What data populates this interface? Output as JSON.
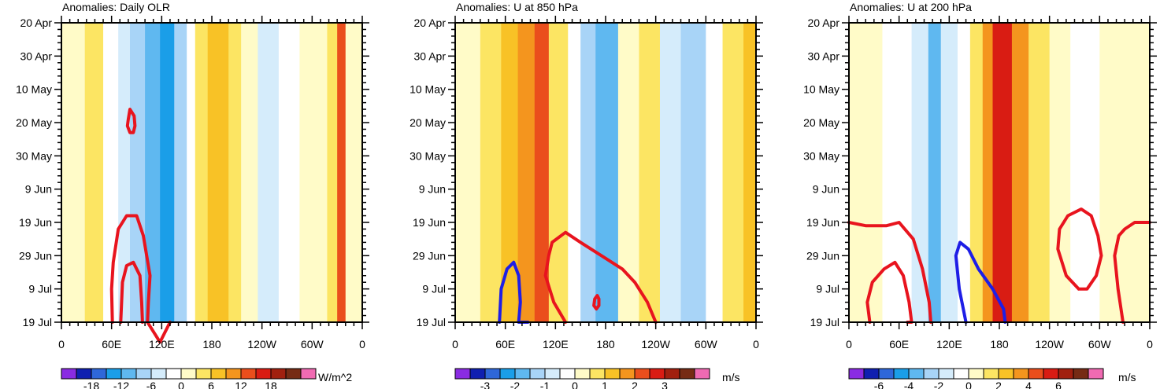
{
  "palette": [
    "#8a2be2",
    "#0f1fb0",
    "#2f67d9",
    "#1a9ee8",
    "#5fb8f0",
    "#a8d4f7",
    "#d5ecfb",
    "#ffffff",
    "#fffbc8",
    "#fce563",
    "#f8c226",
    "#f4951e",
    "#ea4e1c",
    "#d91c13",
    "#a1200f",
    "#762b14",
    "#f06ab2"
  ],
  "chart_data": [
    {
      "type": "heatmap",
      "title": "Anomalies: Daily OLR",
      "units": "W/m^2",
      "x_tick_labels": [
        "0",
        "60E",
        "120E",
        "180",
        "120W",
        "60W",
        "0"
      ],
      "x_range": [
        0,
        360
      ],
      "y_tick_labels": [
        "20 Apr",
        "30 Apr",
        "10 May",
        "20 May",
        "30 May",
        "9 Jun",
        "19 Jun",
        "29 Jun",
        "9 Jul",
        "19 Jul"
      ],
      "colorbar_labels": [
        "-18",
        "-12",
        "-6",
        "0",
        "6",
        "12",
        "18"
      ],
      "levels": [
        -21,
        -18,
        -15,
        -12,
        -9,
        -6,
        -3,
        0,
        3,
        6,
        9,
        12,
        15,
        18,
        21
      ],
      "stripes": [
        {
          "lon_start": 0,
          "lon_end": 28,
          "value": 1
        },
        {
          "lon_start": 28,
          "lon_end": 50,
          "value": 3
        },
        {
          "lon_start": 50,
          "lon_end": 68,
          "value": -2
        },
        {
          "lon_start": 68,
          "lon_end": 82,
          "value": -4
        },
        {
          "lon_start": 82,
          "lon_end": 100,
          "value": -7
        },
        {
          "lon_start": 100,
          "lon_end": 118,
          "value": -10
        },
        {
          "lon_start": 118,
          "lon_end": 135,
          "value": -14
        },
        {
          "lon_start": 135,
          "lon_end": 150,
          "value": -8
        },
        {
          "lon_start": 150,
          "lon_end": 160,
          "value": -2
        },
        {
          "lon_start": 160,
          "lon_end": 175,
          "value": 3
        },
        {
          "lon_start": 175,
          "lon_end": 200,
          "value": 8
        },
        {
          "lon_start": 200,
          "lon_end": 215,
          "value": 5
        },
        {
          "lon_start": 215,
          "lon_end": 235,
          "value": 1
        },
        {
          "lon_start": 235,
          "lon_end": 260,
          "value": -5
        },
        {
          "lon_start": 260,
          "lon_end": 285,
          "value": -2
        },
        {
          "lon_start": 285,
          "lon_end": 318,
          "value": 1
        },
        {
          "lon_start": 318,
          "lon_end": 330,
          "value": 4
        },
        {
          "lon_start": 330,
          "lon_end": 340,
          "value": 12
        },
        {
          "lon_start": 340,
          "lon_end": 360,
          "value": 1
        }
      ],
      "contours": [
        {
          "color": "red",
          "lon": [
            80,
            79,
            82,
            86,
            88,
            87,
            82,
            80
          ],
          "day": [
            29,
            31,
            33,
            33,
            31,
            28,
            26,
            29
          ]
        },
        {
          "color": "red",
          "lon": [
            61,
            60,
            62,
            68,
            78,
            90,
            98,
            106,
            104,
            103,
            118,
            130
          ],
          "day": [
            90,
            80,
            72,
            62,
            58,
            58,
            64,
            76,
            84,
            90,
            96,
            90
          ]
        },
        {
          "color": "red",
          "lon": [
            71,
            73,
            78,
            86,
            94,
            96,
            97
          ],
          "day": [
            90,
            78,
            73,
            72,
            76,
            84,
            90
          ]
        }
      ]
    },
    {
      "type": "heatmap",
      "title": "Anomalies: U at 850 hPa",
      "units": "m/s",
      "x_tick_labels": [
        "0",
        "60E",
        "120E",
        "180",
        "120W",
        "60W",
        "0"
      ],
      "x_range": [
        0,
        360
      ],
      "y_tick_labels": [
        "20 Apr",
        "30 Apr",
        "10 May",
        "20 May",
        "30 May",
        "9 Jun",
        "19 Jun",
        "29 Jun",
        "9 Jul",
        "19 Jul"
      ],
      "colorbar_labels": [
        "-3",
        "-2",
        "-1",
        "0",
        "1",
        "2",
        "3"
      ],
      "levels": [
        -3.5,
        -3,
        -2.5,
        -2,
        -1.5,
        -1,
        -0.5,
        0,
        0.5,
        1,
        1.5,
        2,
        2.5,
        3,
        3.5
      ],
      "stripes": [
        {
          "lon_start": 0,
          "lon_end": 30,
          "value": 0.3
        },
        {
          "lon_start": 30,
          "lon_end": 55,
          "value": 0.8
        },
        {
          "lon_start": 55,
          "lon_end": 75,
          "value": 1.3
        },
        {
          "lon_start": 75,
          "lon_end": 95,
          "value": 1.6
        },
        {
          "lon_start": 95,
          "lon_end": 112,
          "value": 2.2
        },
        {
          "lon_start": 112,
          "lon_end": 135,
          "value": 0.8
        },
        {
          "lon_start": 135,
          "lon_end": 150,
          "value": -0.3
        },
        {
          "lon_start": 150,
          "lon_end": 168,
          "value": -1.2
        },
        {
          "lon_start": 168,
          "lon_end": 195,
          "value": -1.7
        },
        {
          "lon_start": 195,
          "lon_end": 220,
          "value": 0.3
        },
        {
          "lon_start": 220,
          "lon_end": 245,
          "value": 0.8
        },
        {
          "lon_start": 245,
          "lon_end": 270,
          "value": -0.8
        },
        {
          "lon_start": 270,
          "lon_end": 300,
          "value": -1.3
        },
        {
          "lon_start": 300,
          "lon_end": 320,
          "value": -0.2
        },
        {
          "lon_start": 320,
          "lon_end": 345,
          "value": 0.6
        },
        {
          "lon_start": 345,
          "lon_end": 360,
          "value": 1.2
        }
      ],
      "contours": [
        {
          "color": "red",
          "lon": [
            132,
            118,
            108,
            112,
            116,
            132,
            150,
            175,
            200,
            215,
            230,
            240
          ],
          "day": [
            90,
            84,
            76,
            70,
            66,
            63,
            66,
            70,
            74,
            78,
            84,
            90
          ]
        },
        {
          "color": "blue",
          "lon": [
            53,
            55,
            62,
            70,
            76,
            78,
            76,
            87
          ],
          "day": [
            90,
            80,
            74,
            72,
            76,
            84,
            90,
            90
          ]
        },
        {
          "color": "red",
          "lon": [
            169,
            166,
            167,
            170,
            172,
            172,
            169
          ],
          "day": [
            86,
            85,
            83,
            82,
            83,
            85,
            86
          ]
        }
      ]
    },
    {
      "type": "heatmap",
      "title": "Anomalies: U at 200 hPa",
      "units": "m/s",
      "x_tick_labels": [
        "0",
        "60E",
        "120E",
        "180",
        "120W",
        "60W",
        "0"
      ],
      "x_range": [
        0,
        360
      ],
      "y_tick_labels": [
        "20 Apr",
        "30 Apr",
        "10 May",
        "20 May",
        "30 May",
        "9 Jun",
        "19 Jun",
        "29 Jun",
        "9 Jul",
        "19 Jul"
      ],
      "colorbar_labels": [
        "-6",
        "-4",
        "-2",
        "0",
        "2",
        "4",
        "6"
      ],
      "levels": [
        -7,
        -6,
        -5,
        -4,
        -3,
        -2,
        -1,
        0,
        1,
        2,
        3,
        4,
        5,
        6,
        7
      ],
      "stripes": [
        {
          "lon_start": 0,
          "lon_end": 40,
          "value": 0.5
        },
        {
          "lon_start": 40,
          "lon_end": 75,
          "value": -0.6
        },
        {
          "lon_start": 75,
          "lon_end": 95,
          "value": -2
        },
        {
          "lon_start": 95,
          "lon_end": 110,
          "value": -3.5
        },
        {
          "lon_start": 110,
          "lon_end": 130,
          "value": -2
        },
        {
          "lon_start": 130,
          "lon_end": 145,
          "value": -0.5
        },
        {
          "lon_start": 145,
          "lon_end": 160,
          "value": 1.6
        },
        {
          "lon_start": 160,
          "lon_end": 172,
          "value": 3.5
        },
        {
          "lon_start": 172,
          "lon_end": 195,
          "value": 5.5
        },
        {
          "lon_start": 195,
          "lon_end": 215,
          "value": 3.5
        },
        {
          "lon_start": 215,
          "lon_end": 240,
          "value": 1.8
        },
        {
          "lon_start": 240,
          "lon_end": 265,
          "value": 0.5
        },
        {
          "lon_start": 265,
          "lon_end": 300,
          "value": -0.5
        },
        {
          "lon_start": 300,
          "lon_end": 330,
          "value": 0.8
        },
        {
          "lon_start": 330,
          "lon_end": 360,
          "value": 0.5
        }
      ],
      "contours": [
        {
          "color": "red",
          "lon": [
            0,
            20,
            45,
            60,
            77,
            88,
            96,
            98
          ],
          "day": [
            60,
            61,
            61,
            60,
            65,
            74,
            84,
            90
          ]
        },
        {
          "color": "red",
          "lon": [
            25,
            22,
            28,
            42,
            55,
            65,
            72,
            75,
            70
          ],
          "day": [
            90,
            84,
            78,
            74,
            72,
            76,
            84,
            90,
            90
          ]
        },
        {
          "color": "blue",
          "lon": [
            140,
            132,
            128,
            133,
            143,
            155,
            172,
            185,
            187
          ],
          "day": [
            90,
            80,
            70,
            66,
            68,
            74,
            80,
            86,
            90
          ]
        },
        {
          "color": "red",
          "lon": [
            275,
            260,
            250,
            252,
            262,
            278,
            290,
            298,
            302,
            296,
            285,
            275
          ],
          "day": [
            80,
            76,
            68,
            62,
            58,
            56,
            58,
            64,
            70,
            76,
            80,
            80
          ]
        },
        {
          "color": "red",
          "lon": [
            328,
            322,
            318,
            323,
            330,
            342,
            360
          ],
          "day": [
            90,
            80,
            70,
            64,
            62,
            60,
            60
          ]
        }
      ]
    }
  ]
}
